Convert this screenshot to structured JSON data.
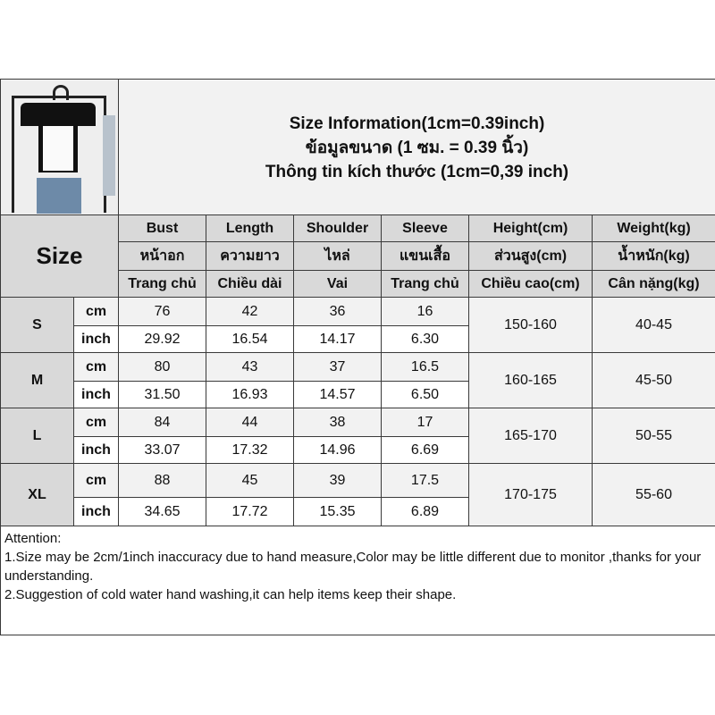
{
  "title_lines": [
    "Size Information(1cm=0.39inch)",
    "ข้อมูลขนาด (1 ซม. = 0.39 นิ้ว)",
    "Thông tin kích thước (1cm=0,39 inch)"
  ],
  "size_label": "Size",
  "columns": [
    {
      "en": "Bust",
      "th": "หน้าอก",
      "vi": "Trang chủ"
    },
    {
      "en": "Length",
      "th": "ความยาว",
      "vi": "Chiều dài"
    },
    {
      "en": "Shoulder",
      "th": "ไหล่",
      "vi": "Vai"
    },
    {
      "en": "Sleeve",
      "th": "แขนเสื้อ",
      "vi": "Trang chủ"
    },
    {
      "en": "Height(cm)",
      "th": "ส่วนสูง(cm)",
      "vi": "Chiều cao(cm)"
    },
    {
      "en": "Weight(kg)",
      "th": "น้ำหนัก(kg)",
      "vi": "Cân nặng(kg)"
    }
  ],
  "units": {
    "cm": "cm",
    "inch": "inch"
  },
  "rows": [
    {
      "size": "S",
      "cm": [
        "76",
        "42",
        "36",
        "16"
      ],
      "inch": [
        "29.92",
        "16.54",
        "14.17",
        "6.30"
      ],
      "height": "150-160",
      "weight": "40-45"
    },
    {
      "size": "M",
      "cm": [
        "80",
        "43",
        "37",
        "16.5"
      ],
      "inch": [
        "31.50",
        "16.93",
        "14.57",
        "6.50"
      ],
      "height": "160-165",
      "weight": "45-50"
    },
    {
      "size": "L",
      "cm": [
        "84",
        "44",
        "38",
        "17"
      ],
      "inch": [
        "33.07",
        "17.32",
        "14.96",
        "6.69"
      ],
      "height": "165-170",
      "weight": "50-55"
    },
    {
      "size": "XL",
      "cm": [
        "88",
        "45",
        "39",
        "17.5"
      ],
      "inch": [
        "34.65",
        "17.72",
        "15.35",
        "6.89"
      ],
      "height": "170-175",
      "weight": "55-60"
    }
  ],
  "attention": {
    "heading": "Attention:",
    "lines": [
      "1.Size may be 2cm/1inch inaccuracy due to hand measure,Color may be little different due to monitor ,thanks for your understanding.",
      "2.Suggestion of cold water hand washing,it can help items keep their shape."
    ]
  }
}
